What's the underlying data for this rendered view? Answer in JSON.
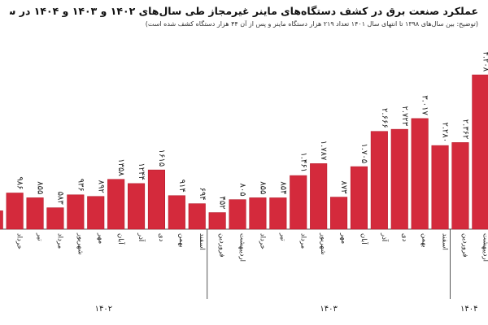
{
  "header": {
    "title": "عملکرد صنعت برق در کشف دستگاه‌های ماینر غیرمجاز طی سال‌های ۱۴۰۲ و ۱۴۰۳ و ۱۴۰۴ در سراسر کشور",
    "subtitle": "(توضیح: بین سال‌های ۱۳۹۸ تا انتهای سال ۱۴۰۱ تعداد ۲۱۹ هزار دستگاه ماینر و پس از آن ۴۴ هزار دستگاه کشف شده است)"
  },
  "colors": {
    "bar": "#d42a3c",
    "bar_stroke": "#b71c2c",
    "axis": "#555555",
    "text": "#222222"
  },
  "chart_data": {
    "type": "bar",
    "title": "عملکرد صنعت برق در کشف دستگاه‌های ماینر غیرمجاز طی سال‌های ۱۴۰۲ و ۱۴۰۳ و ۱۴۰۴ در سراسر کشور",
    "subtitle": "(توضیح: بین سال‌های ۱۳۹۸ تا انتهای سال ۱۴۰۱ تعداد ۲۱۹ هزار دستگاه ماینر و پس از آن ۴۴ هزار دستگاه کشف شده است)",
    "direction": "right-to-left",
    "ylim": [
      0,
      4300
    ],
    "grid": false,
    "bars": [
      {
        "year": "۱۴۰۲",
        "month": "",
        "value": 500,
        "label": "",
        "partial": true
      },
      {
        "year": "۱۴۰۲",
        "month": "خرداد",
        "value": 986,
        "label": "۹۸۶"
      },
      {
        "year": "۱۴۰۲",
        "month": "تیر",
        "value": 855,
        "label": "۸۵۵"
      },
      {
        "year": "۱۴۰۲",
        "month": "مرداد",
        "value": 583,
        "label": "۵۸۳"
      },
      {
        "year": "۱۴۰۲",
        "month": "شهریور",
        "value": 936,
        "label": "۹۳۶"
      },
      {
        "year": "۱۴۰۲",
        "month": "مهر",
        "value": 892,
        "label": "۸۹۲"
      },
      {
        "year": "۱۴۰۲",
        "month": "آبان",
        "value": 1358,
        "label": "۱۳۵۸"
      },
      {
        "year": "۱۴۰۲",
        "month": "آذر",
        "value": 1244,
        "label": "۱۲۴۴"
      },
      {
        "year": "۱۴۰۲",
        "month": "دی",
        "value": 1615,
        "label": "۱۶۱۵"
      },
      {
        "year": "۱۴۰۲",
        "month": "بهمن",
        "value": 914,
        "label": "۹۱۴"
      },
      {
        "year": "۱۴۰۲",
        "month": "اسفند",
        "value": 694,
        "label": "۶۹۴"
      },
      {
        "year": "۱۴۰۳",
        "month": "فروردین",
        "value": 452,
        "label": "۴۵۲"
      },
      {
        "year": "۱۴۰۳",
        "month": "اردیبهشت",
        "value": 805,
        "label": "۸۰۵"
      },
      {
        "year": "۱۴۰۳",
        "month": "خرداد",
        "value": 855,
        "label": "۸۵۵"
      },
      {
        "year": "۱۴۰۳",
        "month": "تیر",
        "value": 854,
        "label": "۸۵۴"
      },
      {
        "year": "۱۴۰۳",
        "month": "مرداد",
        "value": 1461,
        "label": "۱.۴۶۱"
      },
      {
        "year": "۱۴۰۳",
        "month": "شهریور",
        "value": 1787,
        "label": "۱.۷۸۷"
      },
      {
        "year": "۱۴۰۳",
        "month": "مهر",
        "value": 873,
        "label": "۸۷۳"
      },
      {
        "year": "۱۴۰۳",
        "month": "آبان",
        "value": 1705,
        "label": "۱.۷۰۵"
      },
      {
        "year": "۱۴۰۳",
        "month": "آذر",
        "value": 2666,
        "label": "۲.۶۶۶"
      },
      {
        "year": "۱۴۰۳",
        "month": "دی",
        "value": 2723,
        "label": "۲.۷۲۳"
      },
      {
        "year": "۱۴۰۳",
        "month": "بهمن",
        "value": 3017,
        "label": "۳.۰۱۷"
      },
      {
        "year": "۱۴۰۳",
        "month": "اسفند",
        "value": 2280,
        "label": "۲.۲۸۰"
      },
      {
        "year": "۱۴۰۴",
        "month": "فروردین",
        "value": 2362,
        "label": "۲.۳۶۲"
      },
      {
        "year": "۱۴۰۴",
        "month": "اردیبهشت",
        "value": 4208,
        "label": "۴.۲۰۸"
      }
    ],
    "years": [
      {
        "label": "۱۴۰۲",
        "start": 0,
        "end": 10
      },
      {
        "label": "۱۴۰۳",
        "start": 11,
        "end": 22
      },
      {
        "label": "۱۴۰۴",
        "start": 23,
        "end": 24
      }
    ]
  }
}
